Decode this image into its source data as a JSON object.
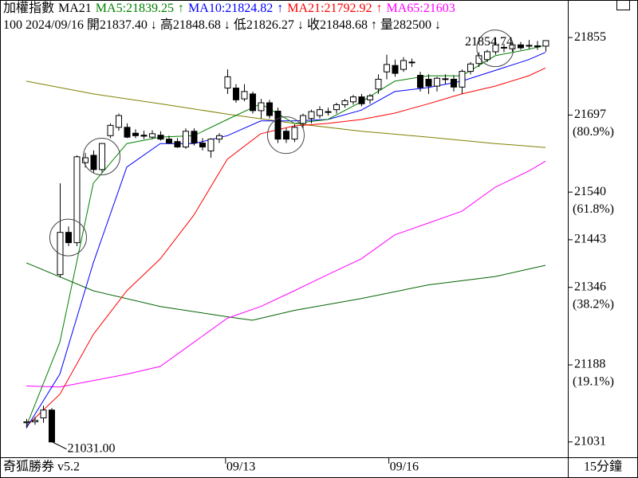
{
  "chart_data": {
    "type": "candlestick",
    "header": [
      {
        "text": "加權指數",
        "color": "#000000"
      },
      {
        "text": "MA21",
        "color": "#000000"
      },
      {
        "text": "MA5:21839.25",
        "color": "#008000"
      },
      {
        "text": "↑",
        "color": "#008000"
      },
      {
        "text": "MA10:21824.82",
        "color": "#0000ff"
      },
      {
        "text": "↑",
        "color": "#0000ff"
      },
      {
        "text": "MA21:21792.92",
        "color": "#ff0000"
      },
      {
        "text": "↑",
        "color": "#ff0000"
      },
      {
        "text": "MA65:21603",
        "color": "#ff00ff"
      }
    ],
    "info": [
      "100 2024/09/16",
      "開21837.40",
      "↓",
      "高21848.68",
      "↓",
      "低21826.27",
      "↓",
      "收21848.68",
      "↑",
      "量282500",
      "↓"
    ],
    "xlim": [
      -3.14,
      64.67
    ],
    "ylim": [
      21003,
      21860
    ],
    "yticks": [
      21855,
      21697,
      21540,
      21443,
      21346,
      21188,
      21031
    ],
    "fib_labels": [
      {
        "value": 21697,
        "label": "(80.9%)"
      },
      {
        "value": 21540,
        "label": "(61.8%)"
      },
      {
        "value": 21346,
        "label": "(38.2%)"
      },
      {
        "value": 21188,
        "label": "(19.1%)"
      }
    ],
    "xticks": [
      {
        "value": 23.8,
        "label": "09/13"
      },
      {
        "value": 43.3,
        "label": "09/16"
      }
    ],
    "up_color": "#ffffff",
    "down_color": "#000000",
    "ohlc": [
      [
        21070,
        21078,
        21060,
        21072
      ],
      [
        21072,
        21082,
        21066,
        21075
      ],
      [
        21080,
        21105,
        21070,
        21096
      ],
      [
        21096,
        21100,
        21031,
        21031
      ],
      [
        21372,
        21558,
        21366,
        21458
      ],
      [
        21458,
        21470,
        21430,
        21437
      ],
      [
        21437,
        21615,
        21430,
        21612
      ],
      [
        21600,
        21620,
        21590,
        21610
      ],
      [
        21615,
        21625,
        21580,
        21586
      ],
      [
        21586,
        21640,
        21580,
        21639
      ],
      [
        21655,
        21680,
        21650,
        21676
      ],
      [
        21672,
        21700,
        21665,
        21696
      ],
      [
        21672,
        21680,
        21650,
        21652
      ],
      [
        21660,
        21668,
        21650,
        21655
      ],
      [
        21656,
        21665,
        21648,
        21654
      ],
      [
        21652,
        21666,
        21648,
        21659
      ],
      [
        21656,
        21664,
        21645,
        21648
      ],
      [
        21648,
        21655,
        21638,
        21640
      ],
      [
        21643,
        21650,
        21630,
        21632
      ],
      [
        21632,
        21670,
        21628,
        21664
      ],
      [
        21664,
        21670,
        21635,
        21640
      ],
      [
        21640,
        21650,
        21625,
        21632
      ],
      [
        21624,
        21650,
        21610,
        21648
      ],
      [
        21648,
        21660,
        21640,
        21655
      ],
      [
        21752,
        21790,
        21740,
        21775
      ],
      [
        21752,
        21760,
        21722,
        21728
      ],
      [
        21730,
        21760,
        21725,
        21745
      ],
      [
        21740,
        21745,
        21700,
        21706
      ],
      [
        21706,
        21730,
        21690,
        21722
      ],
      [
        21722,
        21728,
        21690,
        21696
      ],
      [
        21705,
        21712,
        21640,
        21648
      ],
      [
        21664,
        21670,
        21640,
        21648
      ],
      [
        21648,
        21678,
        21642,
        21672
      ],
      [
        21680,
        21700,
        21670,
        21696
      ],
      [
        21690,
        21708,
        21680,
        21704
      ],
      [
        21696,
        21715,
        21690,
        21708
      ],
      [
        21704,
        21712,
        21696,
        21704
      ],
      [
        21708,
        21722,
        21700,
        21718
      ],
      [
        21718,
        21730,
        21712,
        21726
      ],
      [
        21724,
        21738,
        21718,
        21734
      ],
      [
        21734,
        21740,
        21715,
        21720
      ],
      [
        21728,
        21740,
        21720,
        21736
      ],
      [
        21750,
        21780,
        21740,
        21770
      ],
      [
        21785,
        21820,
        21770,
        21800
      ],
      [
        21798,
        21810,
        21775,
        21782
      ],
      [
        21790,
        21815,
        21785,
        21808
      ],
      [
        21804,
        21812,
        21795,
        21805
      ],
      [
        21778,
        21785,
        21745,
        21753
      ],
      [
        21770,
        21780,
        21740,
        21756
      ],
      [
        21756,
        21775,
        21745,
        21772
      ],
      [
        21770,
        21780,
        21760,
        21771
      ],
      [
        21770,
        21778,
        21745,
        21754
      ],
      [
        21754,
        21790,
        21740,
        21786
      ],
      [
        21786,
        21805,
        21780,
        21801
      ],
      [
        21802,
        21825,
        21795,
        21818
      ],
      [
        21810,
        21830,
        21805,
        21826
      ],
      [
        21826,
        21854.74,
        21820,
        21840
      ],
      [
        21834,
        21842,
        21825,
        21835
      ],
      [
        21832,
        21845,
        21826,
        21840
      ],
      [
        21840,
        21846,
        21830,
        21834
      ],
      [
        21838,
        21850,
        21832,
        21839
      ],
      [
        21838,
        21848,
        21830,
        21836
      ],
      [
        21837.4,
        21848.68,
        21826.27,
        21848.68
      ]
    ],
    "series": [
      {
        "color": "#808000",
        "x": [
          0,
          8,
          16,
          24,
          32,
          40,
          48,
          56,
          62
        ],
        "values": [
          21766,
          21740,
          21720,
          21699,
          21680,
          21664,
          21652,
          21639,
          21631
        ]
      },
      {
        "color": "#006400",
        "x": [
          0,
          8,
          16,
          24,
          27,
          32,
          40,
          48,
          56,
          62
        ],
        "values": [
          21396,
          21339,
          21307,
          21286,
          21279,
          21299,
          21323,
          21351,
          21368,
          21391
        ]
      },
      {
        "name": "MA65",
        "color": "#ff00ff",
        "x": [
          0,
          4,
          8,
          12,
          16,
          20,
          24,
          28,
          32,
          36,
          40,
          44,
          48,
          52,
          56,
          60,
          62
        ],
        "values": [
          21145,
          21143,
          21156,
          21169,
          21185,
          21234,
          21283,
          21307,
          21339,
          21372,
          21404,
          21453,
          21477,
          21501,
          21550,
          21583,
          21603
        ]
      },
      {
        "name": "MA21",
        "color": "#ff0000",
        "x": [
          0,
          4,
          8,
          12,
          16,
          20,
          24,
          28,
          32,
          36,
          40,
          44,
          48,
          52,
          56,
          60,
          62
        ],
        "values": [
          21063,
          21128,
          21250,
          21339,
          21404,
          21493,
          21607,
          21659,
          21675,
          21680,
          21688,
          21701,
          21720,
          21740,
          21756,
          21777,
          21792.92
        ]
      },
      {
        "name": "MA10",
        "color": "#0000ff",
        "x": [
          0,
          4,
          8,
          12,
          16,
          20,
          24,
          28,
          32,
          36,
          40,
          44,
          48,
          52,
          56,
          60,
          62
        ],
        "values": [
          21059,
          21169,
          21396,
          21591,
          21639,
          21639,
          21655,
          21685,
          21685,
          21688,
          21707,
          21745,
          21753,
          21766,
          21788,
          21810,
          21824.82
        ]
      },
      {
        "name": "MA5",
        "color": "#008000",
        "x": [
          0,
          4,
          8,
          12,
          16,
          20,
          24,
          28,
          32,
          36,
          40,
          44,
          48,
          52,
          56,
          60,
          62
        ],
        "values": [
          21063,
          21234,
          21558,
          21639,
          21652,
          21655,
          21688,
          21720,
          21680,
          21688,
          21724,
          21766,
          21777,
          21777,
          21818,
          21831,
          21839.25
        ]
      }
    ],
    "circled": [
      5,
      9,
      31,
      56
    ],
    "high_label": "21854.74",
    "low_label": "21031.00",
    "footer_left": "奇狐勝券 v5.2",
    "period": "15分鐘"
  }
}
